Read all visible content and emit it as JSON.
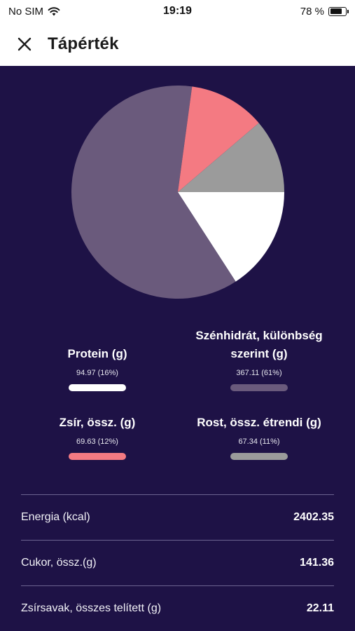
{
  "status": {
    "carrier": "No SIM",
    "time": "19:19",
    "battery": "78 %",
    "battery_level": 0.78
  },
  "header": {
    "title": "Tápérték"
  },
  "chart_data": {
    "type": "pie",
    "slices": [
      {
        "label": "Protein (g)",
        "value": 94.97,
        "percent": 16,
        "color": "#ffffff"
      },
      {
        "label": "Szénhidrát, különbség szerint (g)",
        "value": 367.11,
        "percent": 61,
        "color": "#6a5a7c"
      },
      {
        "label": "Zsír, össz. (g)",
        "value": 69.63,
        "percent": 12,
        "color": "#f47a82"
      },
      {
        "label": "Rost, össz. étrendi (g)",
        "value": 67.34,
        "percent": 11,
        "color": "#9b9b9b"
      }
    ]
  },
  "legend": [
    {
      "title": "Protein (g)",
      "value": "94.97 (16%)",
      "color": "#ffffff"
    },
    {
      "title": "Szénhidrát, különbség szerint (g)",
      "value": "367.11 (61%)",
      "color": "#6a5a7c"
    },
    {
      "title": "Zsír, össz. (g)",
      "value": "69.63 (12%)",
      "color": "#f47a82"
    },
    {
      "title": "Rost, össz. étrendi (g)",
      "value": "67.34 (11%)",
      "color": "#9b9b9b"
    }
  ],
  "stats": [
    {
      "label": "Energia (kcal)",
      "value": "2402.35"
    },
    {
      "label": "Cukor, össz.(g)",
      "value": "141.36"
    },
    {
      "label": "Zsírsavak, összes telített (g)",
      "value": "22.11"
    }
  ]
}
